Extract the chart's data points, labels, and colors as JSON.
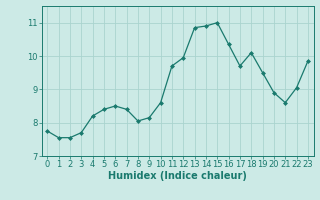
{
  "x": [
    0,
    1,
    2,
    3,
    4,
    5,
    6,
    7,
    8,
    9,
    10,
    11,
    12,
    13,
    14,
    15,
    16,
    17,
    18,
    19,
    20,
    21,
    22,
    23
  ],
  "y": [
    7.75,
    7.55,
    7.55,
    7.7,
    8.2,
    8.4,
    8.5,
    8.4,
    8.05,
    8.15,
    8.6,
    9.7,
    9.95,
    10.85,
    10.9,
    11.0,
    10.35,
    9.7,
    10.1,
    9.5,
    8.9,
    8.6,
    9.05,
    9.85
  ],
  "line_color": "#1a7a6e",
  "marker": "D",
  "markersize": 2,
  "linewidth": 0.9,
  "bg_color": "#cceae6",
  "grid_color": "#aad4cf",
  "xlabel": "Humidex (Indice chaleur)",
  "ylim": [
    7,
    11.5
  ],
  "xlim": [
    -0.5,
    23.5
  ],
  "yticks": [
    7,
    8,
    9,
    10,
    11
  ],
  "xticks": [
    0,
    1,
    2,
    3,
    4,
    5,
    6,
    7,
    8,
    9,
    10,
    11,
    12,
    13,
    14,
    15,
    16,
    17,
    18,
    19,
    20,
    21,
    22,
    23
  ],
  "tick_fontsize": 6,
  "xlabel_fontsize": 7,
  "axis_color": "#1a7a6e"
}
